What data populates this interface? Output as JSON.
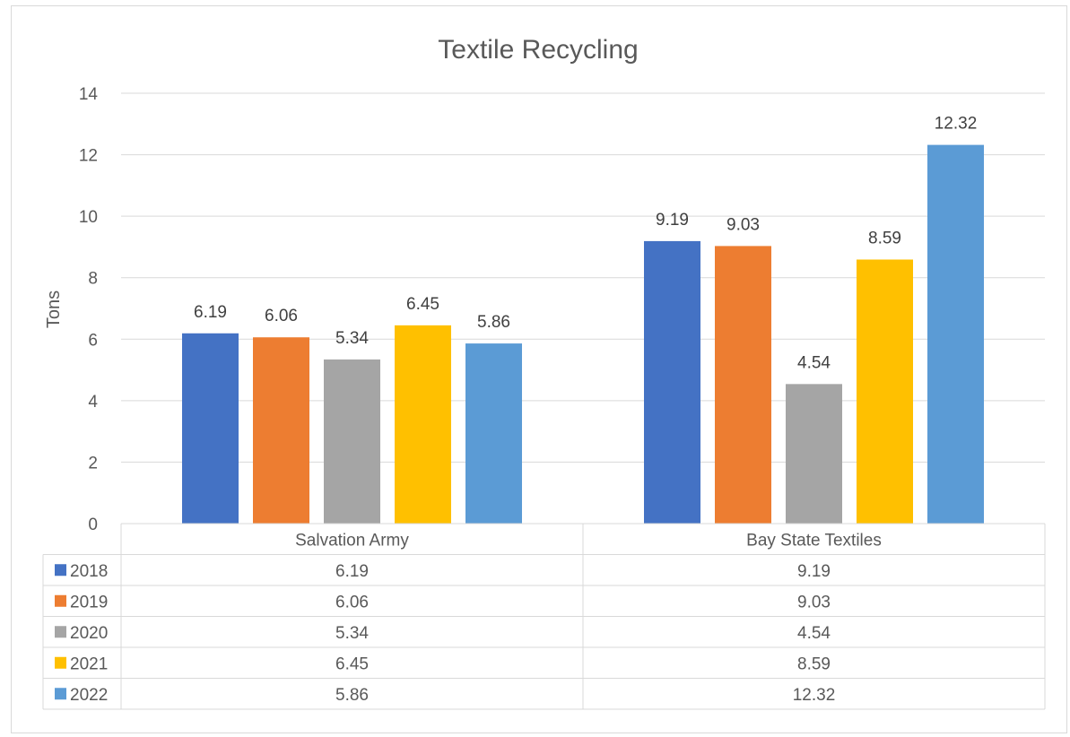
{
  "chart_data": {
    "type": "bar",
    "title": "Textile Recycling",
    "ylabel": "Tons",
    "xlabel": "",
    "ylim": [
      0,
      14
    ],
    "yticks": [
      0,
      2,
      4,
      6,
      8,
      10,
      12,
      14
    ],
    "grid": true,
    "legend": "data-table-below",
    "categories": [
      "Salvation Army",
      "Bay State Textiles"
    ],
    "series": [
      {
        "name": "2018",
        "color": "#4472C4",
        "values": [
          6.19,
          9.19
        ]
      },
      {
        "name": "2019",
        "color": "#ED7D31",
        "values": [
          6.06,
          9.03
        ]
      },
      {
        "name": "2020",
        "color": "#A5A5A5",
        "values": [
          5.34,
          4.54
        ]
      },
      {
        "name": "2021",
        "color": "#FFC000",
        "values": [
          6.45,
          8.59
        ]
      },
      {
        "name": "2022",
        "color": "#5B9BD5",
        "values": [
          5.86,
          12.32
        ]
      }
    ],
    "data_labels": true,
    "data_table": true
  }
}
